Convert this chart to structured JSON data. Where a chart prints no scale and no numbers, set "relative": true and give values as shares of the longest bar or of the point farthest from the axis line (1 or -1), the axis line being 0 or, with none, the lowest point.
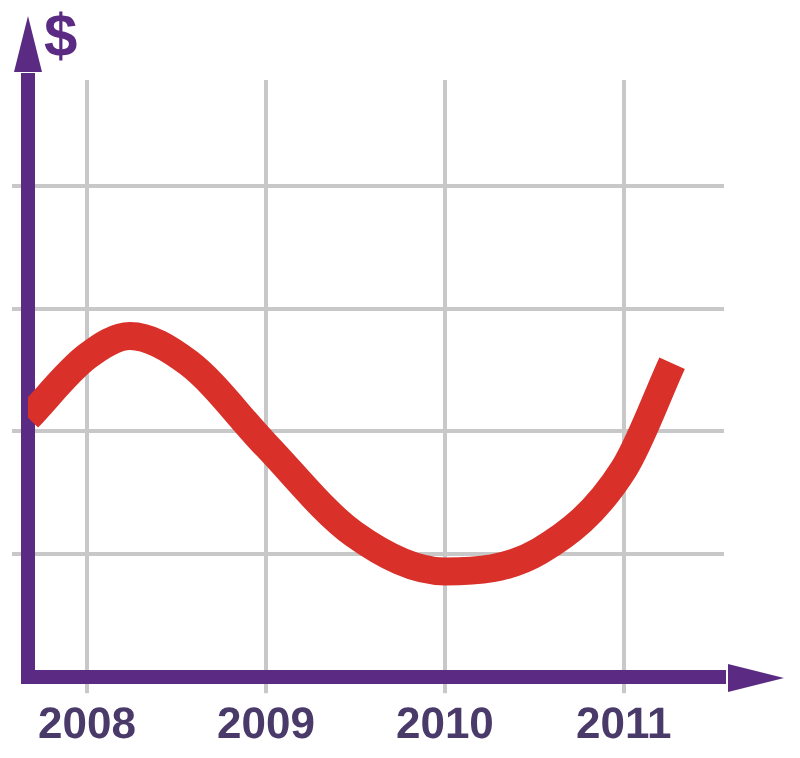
{
  "chart_data": {
    "type": "line",
    "ylabel": "$",
    "relative": true,
    "grid": true,
    "marker": "none",
    "line_style": "solid",
    "xlim": [
      2007.67,
      2011.56
    ],
    "xticks": [
      2008,
      2009,
      2010,
      2011
    ],
    "series": [
      {
        "color": "#d9302a",
        "x": [
          2007.67,
          2008,
          2008.24,
          2008.57,
          2009,
          2009.49,
          2010,
          2010.53,
          2011,
          2011.27
        ],
        "values": [
          0.76,
          0.94,
          1.0,
          0.92,
          0.68,
          0.42,
          0.31,
          0.37,
          0.61,
          0.92
        ]
      }
    ]
  }
}
